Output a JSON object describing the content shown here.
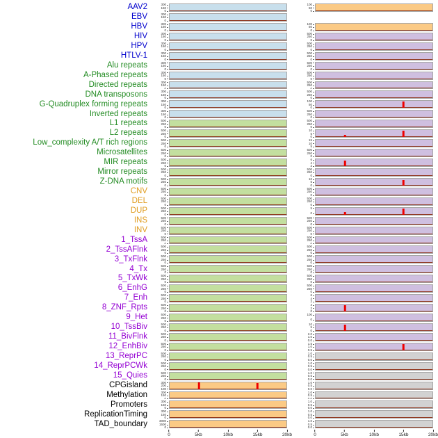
{
  "chart_data": {
    "type": "line",
    "title": "",
    "columns": 2,
    "x_ticks": [
      "0",
      "5kb",
      "10kb",
      "15kb",
      "20kb"
    ],
    "x_range_kb": [
      0,
      20
    ],
    "label_colors": {
      "virus": "#0000cd",
      "repeat": "#228b22",
      "sv": "#e09c1f",
      "chromatin": "#9400d3",
      "other": "#000000"
    },
    "panel_colors": {
      "blue": "#c8dfec",
      "green": "#c3df9f",
      "orange": "#fbca85",
      "purple": "#cfbfe0",
      "gray": "#d2d2d2",
      "white": "#ffffff"
    },
    "accent_colors": {
      "spike": "#ee0000",
      "baseline": "#8b2a0f"
    },
    "ytick_defaults": {
      "left": {
        "blue": [
          "300",
          "150",
          "0"
        ],
        "green": [
          "500",
          "250",
          "0"
        ],
        "orange": [
          "300",
          "150",
          "0"
        ]
      },
      "right": {
        "orange": [
          "100",
          "50",
          "0"
        ],
        "white": [],
        "purple": [
          "500",
          "250",
          "0"
        ],
        "gray": [
          "1.0",
          "0.5",
          "0.0"
        ]
      }
    },
    "rows": [
      {
        "label": "AAV2",
        "group": "virus",
        "left": {
          "fill": "blue",
          "spikes": []
        },
        "right": {
          "fill": "orange",
          "spikes": []
        }
      },
      {
        "label": "EBV",
        "group": "virus",
        "left": {
          "fill": "blue",
          "spikes": []
        },
        "right": {
          "fill": "white",
          "spikes": []
        }
      },
      {
        "label": "HBV",
        "group": "virus",
        "left": {
          "fill": "blue",
          "spikes": []
        },
        "right": {
          "fill": "orange",
          "spikes": []
        }
      },
      {
        "label": "HIV",
        "group": "virus",
        "left": {
          "fill": "blue",
          "spikes": []
        },
        "right": {
          "fill": "purple",
          "spikes": []
        }
      },
      {
        "label": "HPV",
        "group": "virus",
        "left": {
          "fill": "blue",
          "spikes": []
        },
        "right": {
          "fill": "purple",
          "spikes": []
        }
      },
      {
        "label": "HTLV-1",
        "group": "virus",
        "left": {
          "fill": "blue",
          "spikes": []
        },
        "right": {
          "fill": "purple",
          "spikes": []
        }
      },
      {
        "label": "Alu repeats",
        "group": "repeat",
        "left": {
          "fill": "blue",
          "spikes": []
        },
        "right": {
          "fill": "purple",
          "spikes": []
        }
      },
      {
        "label": "A-Phased repeats",
        "group": "repeat",
        "left": {
          "fill": "blue",
          "spikes": []
        },
        "right": {
          "fill": "purple",
          "spikes": []
        }
      },
      {
        "label": "Directed repeats",
        "group": "repeat",
        "left": {
          "fill": "blue",
          "spikes": []
        },
        "right": {
          "fill": "purple",
          "spikes": []
        }
      },
      {
        "label": "DNA transposons",
        "group": "repeat",
        "left": {
          "fill": "blue",
          "spikes": []
        },
        "right": {
          "fill": "purple",
          "spikes": []
        }
      },
      {
        "label": "G-Quadruplex forming repeats",
        "group": "repeat",
        "left": {
          "fill": "blue",
          "spikes": []
        },
        "right": {
          "fill": "purple",
          "spikes": [
            {
              "x_kb": 15,
              "h": 0.95
            }
          ],
          "yticks": [
            "100",
            "50",
            "0"
          ]
        }
      },
      {
        "label": "Inverted repeats",
        "group": "repeat",
        "left": {
          "fill": "blue",
          "spikes": []
        },
        "right": {
          "fill": "purple",
          "spikes": []
        }
      },
      {
        "label": "L1 repeats",
        "group": "repeat",
        "left": {
          "fill": "green",
          "spikes": []
        },
        "right": {
          "fill": "purple",
          "spikes": []
        }
      },
      {
        "label": "L2 repeats",
        "group": "repeat",
        "left": {
          "fill": "green",
          "spikes": []
        },
        "right": {
          "fill": "purple",
          "spikes": [
            {
              "x_kb": 5,
              "h": 0.3
            },
            {
              "x_kb": 15,
              "h": 0.95
            }
          ],
          "yticks": [
            "10",
            "5",
            "0"
          ]
        }
      },
      {
        "label": "Low_complexity A/T rich regions",
        "group": "repeat",
        "left": {
          "fill": "green",
          "spikes": []
        },
        "right": {
          "fill": "purple",
          "spikes": [],
          "yticks": [
            "15",
            "10",
            "5",
            "0"
          ]
        }
      },
      {
        "label": "Microsatellites",
        "group": "repeat",
        "left": {
          "fill": "green",
          "spikes": []
        },
        "right": {
          "fill": "purple",
          "spikes": []
        }
      },
      {
        "label": "MIR repeats",
        "group": "repeat",
        "left": {
          "fill": "green",
          "spikes": []
        },
        "right": {
          "fill": "purple",
          "spikes": [
            {
              "x_kb": 5,
              "h": 0.85
            }
          ],
          "yticks": [
            "6",
            "4",
            "2",
            "0"
          ]
        }
      },
      {
        "label": "Mirror repeats",
        "group": "repeat",
        "left": {
          "fill": "green",
          "spikes": []
        },
        "right": {
          "fill": "purple",
          "spikes": []
        }
      },
      {
        "label": "Z-DNA motifs",
        "group": "repeat",
        "left": {
          "fill": "green",
          "spikes": []
        },
        "right": {
          "fill": "purple",
          "spikes": [
            {
              "x_kb": 15,
              "h": 0.8
            }
          ],
          "yticks": [
            "10",
            "5",
            "0"
          ]
        }
      },
      {
        "label": "CNV",
        "group": "sv",
        "left": {
          "fill": "green",
          "spikes": []
        },
        "right": {
          "fill": "purple",
          "spikes": []
        }
      },
      {
        "label": "DEL",
        "group": "sv",
        "left": {
          "fill": "green",
          "spikes": []
        },
        "right": {
          "fill": "purple",
          "spikes": []
        }
      },
      {
        "label": "DUP",
        "group": "sv",
        "left": {
          "fill": "green",
          "spikes": []
        },
        "right": {
          "fill": "purple",
          "spikes": [
            {
              "x_kb": 5,
              "h": 0.4
            },
            {
              "x_kb": 15,
              "h": 0.9
            }
          ],
          "yticks": [
            "5",
            "0"
          ]
        }
      },
      {
        "label": "INS",
        "group": "sv",
        "left": {
          "fill": "green",
          "spikes": []
        },
        "right": {
          "fill": "purple",
          "spikes": []
        }
      },
      {
        "label": "INV",
        "group": "sv",
        "left": {
          "fill": "green",
          "spikes": []
        },
        "right": {
          "fill": "purple",
          "spikes": []
        }
      },
      {
        "label": "1_TssA",
        "group": "chromatin",
        "left": {
          "fill": "green",
          "spikes": []
        },
        "right": {
          "fill": "purple",
          "spikes": []
        }
      },
      {
        "label": "2_TssAFlnk",
        "group": "chromatin",
        "left": {
          "fill": "green",
          "spikes": []
        },
        "right": {
          "fill": "purple",
          "spikes": []
        }
      },
      {
        "label": "3_TxFlnk",
        "group": "chromatin",
        "left": {
          "fill": "green",
          "spikes": []
        },
        "right": {
          "fill": "purple",
          "spikes": []
        }
      },
      {
        "label": "4_Tx",
        "group": "chromatin",
        "left": {
          "fill": "green",
          "spikes": []
        },
        "right": {
          "fill": "purple",
          "spikes": []
        }
      },
      {
        "label": "5_TxWk",
        "group": "chromatin",
        "left": {
          "fill": "green",
          "spikes": []
        },
        "right": {
          "fill": "purple",
          "spikes": []
        }
      },
      {
        "label": "6_EnhG",
        "group": "chromatin",
        "left": {
          "fill": "green",
          "spikes": []
        },
        "right": {
          "fill": "purple",
          "spikes": []
        }
      },
      {
        "label": "7_Enh",
        "group": "chromatin",
        "left": {
          "fill": "green",
          "spikes": []
        },
        "right": {
          "fill": "purple",
          "spikes": [],
          "yticks": [
            "6",
            "4",
            "2",
            "0"
          ]
        }
      },
      {
        "label": "8_ZNF_Rpts",
        "group": "chromatin",
        "left": {
          "fill": "green",
          "spikes": []
        },
        "right": {
          "fill": "purple",
          "spikes": [
            {
              "x_kb": 5,
              "h": 0.9
            }
          ],
          "yticks": [
            "4",
            "2",
            "0"
          ]
        }
      },
      {
        "label": "9_Het",
        "group": "chromatin",
        "left": {
          "fill": "green",
          "spikes": []
        },
        "right": {
          "fill": "purple",
          "spikes": [],
          "yticks": [
            "100",
            "0"
          ]
        }
      },
      {
        "label": "10_TssBiv",
        "group": "chromatin",
        "left": {
          "fill": "green",
          "spikes": []
        },
        "right": {
          "fill": "purple",
          "spikes": [
            {
              "x_kb": 5,
              "h": 0.9
            }
          ],
          "yticks": [
            "10",
            "5",
            "0"
          ]
        }
      },
      {
        "label": "11_BivFlnk",
        "group": "chromatin",
        "left": {
          "fill": "green",
          "spikes": []
        },
        "right": {
          "fill": "purple",
          "spikes": [],
          "yticks": [
            "2.0",
            "1.0",
            "0.0"
          ]
        }
      },
      {
        "label": "12_EnhBiv",
        "group": "chromatin",
        "left": {
          "fill": "green",
          "spikes": []
        },
        "right": {
          "fill": "purple",
          "spikes": [
            {
              "x_kb": 15,
              "h": 0.9
            }
          ],
          "yticks": [
            "1.5",
            "1.0",
            "0.5",
            "0.0"
          ]
        }
      },
      {
        "label": "13_ReprPC",
        "group": "chromatin",
        "left": {
          "fill": "green",
          "spikes": []
        },
        "right": {
          "fill": "gray",
          "spikes": []
        }
      },
      {
        "label": "14_ReprPCWk",
        "group": "chromatin",
        "left": {
          "fill": "green",
          "spikes": []
        },
        "right": {
          "fill": "gray",
          "spikes": []
        }
      },
      {
        "label": "15_Quies",
        "group": "chromatin",
        "left": {
          "fill": "green",
          "spikes": []
        },
        "right": {
          "fill": "gray",
          "spikes": []
        }
      },
      {
        "label": "CPGisland",
        "group": "other",
        "left": {
          "fill": "orange",
          "spikes": [
            {
              "x_kb": 5,
              "h": 0.95
            },
            {
              "x_kb": 15,
              "h": 0.85
            }
          ],
          "yticks": [
            "300",
            "200",
            "100",
            "0"
          ]
        },
        "right": {
          "fill": "gray",
          "spikes": []
        }
      },
      {
        "label": "Methylation",
        "group": "other",
        "left": {
          "fill": "orange",
          "spikes": []
        },
        "right": {
          "fill": "gray",
          "spikes": []
        }
      },
      {
        "label": "Promoters",
        "group": "other",
        "left": {
          "fill": "orange",
          "spikes": []
        },
        "right": {
          "fill": "gray",
          "spikes": []
        }
      },
      {
        "label": "ReplicationTiming",
        "group": "other",
        "left": {
          "fill": "orange",
          "spikes": []
        },
        "right": {
          "fill": "gray",
          "spikes": []
        }
      },
      {
        "label": "TAD_boundary",
        "group": "other",
        "left": {
          "fill": "orange",
          "spikes": [],
          "yticks": [
            "3000",
            "1500",
            "0"
          ]
        },
        "right": {
          "fill": "gray",
          "spikes": []
        }
      }
    ]
  }
}
